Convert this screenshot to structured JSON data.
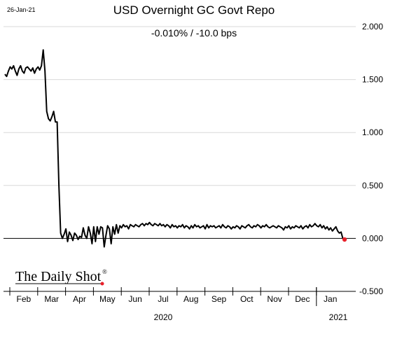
{
  "date_stamp": "26-Jan-21",
  "logo": {
    "text": "The Daily Shot",
    "mark": "®"
  },
  "chart_data": {
    "type": "line",
    "title": "USD Overnight GC Govt Repo",
    "subtitle": "-0.010%  /  -10.0 bps",
    "xlabel": "",
    "ylabel": "",
    "ylim": [
      -0.5,
      2.0
    ],
    "y_ticks": [
      "2.000",
      "1.500",
      "1.000",
      "0.500",
      "0.000",
      "-0.500"
    ],
    "y_axis_position": "right",
    "grid": "horizontal",
    "months": [
      "Feb",
      "Mar",
      "Apr",
      "May",
      "Jun",
      "Jul",
      "Aug",
      "Sep",
      "Oct",
      "Nov",
      "Dec",
      "Jan"
    ],
    "years": [
      "2020",
      "2021"
    ],
    "line_color": "#000000",
    "last_point_color": "#e8202a",
    "series": [
      {
        "values": [
          1.55,
          1.53,
          1.58,
          1.62,
          1.6,
          1.63,
          1.58,
          1.54,
          1.6,
          1.63,
          1.58,
          1.56,
          1.61,
          1.62,
          1.6,
          1.58,
          1.61,
          1.56,
          1.6,
          1.62,
          1.59,
          1.63,
          1.78,
          1.58,
          1.2,
          1.13,
          1.11,
          1.15,
          1.2,
          1.1,
          1.1,
          0.5,
          0.05,
          0.0,
          0.04,
          0.09,
          -0.03,
          0.06,
          0.03,
          -0.02,
          0.05,
          0.03,
          -0.01,
          0.02,
          0.01,
          0.1,
          0.03,
          0.0,
          0.11,
          0.05,
          -0.05,
          0.11,
          -0.03,
          0.11,
          0.04,
          0.11,
          0.1,
          -0.08,
          0.03,
          0.12,
          0.09,
          -0.05,
          0.11,
          0.04,
          0.13,
          0.05,
          0.12,
          0.1,
          0.13,
          0.11,
          0.12,
          0.09,
          0.13,
          0.12,
          0.11,
          0.13,
          0.12,
          0.11,
          0.13,
          0.14,
          0.12,
          0.14,
          0.13,
          0.15,
          0.13,
          0.12,
          0.14,
          0.13,
          0.12,
          0.14,
          0.12,
          0.13,
          0.11,
          0.13,
          0.12,
          0.1,
          0.13,
          0.11,
          0.12,
          0.1,
          0.12,
          0.11,
          0.13,
          0.1,
          0.12,
          0.11,
          0.09,
          0.12,
          0.1,
          0.13,
          0.11,
          0.12,
          0.1,
          0.11,
          0.12,
          0.09,
          0.13,
          0.1,
          0.12,
          0.11,
          0.12,
          0.1,
          0.11,
          0.12,
          0.1,
          0.13,
          0.11,
          0.1,
          0.12,
          0.11,
          0.09,
          0.11,
          0.1,
          0.12,
          0.11,
          0.09,
          0.12,
          0.11,
          0.1,
          0.12,
          0.13,
          0.11,
          0.1,
          0.12,
          0.11,
          0.13,
          0.12,
          0.1,
          0.12,
          0.11,
          0.13,
          0.11,
          0.1,
          0.11,
          0.12,
          0.11,
          0.1,
          0.12,
          0.11,
          0.1,
          0.08,
          0.11,
          0.1,
          0.12,
          0.09,
          0.11,
          0.1,
          0.12,
          0.11,
          0.1,
          0.12,
          0.09,
          0.11,
          0.12,
          0.1,
          0.13,
          0.11,
          0.12,
          0.14,
          0.12,
          0.11,
          0.13,
          0.1,
          0.12,
          0.09,
          0.11,
          0.08,
          0.1,
          0.07,
          0.09,
          0.11,
          0.07,
          0.05,
          0.06,
          0.0,
          -0.01
        ]
      }
    ]
  }
}
